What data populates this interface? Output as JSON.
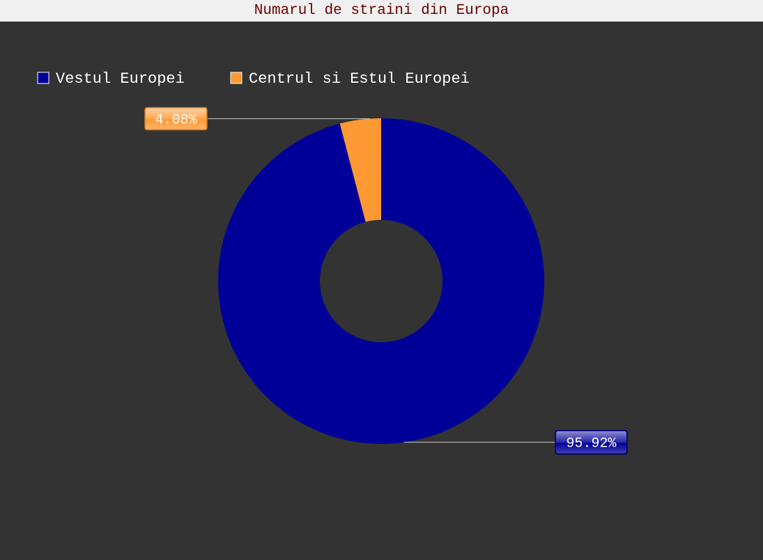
{
  "chart_data": {
    "type": "pie",
    "title": "Numarul de straini din Europa",
    "donut": true,
    "legend_position": "top-left",
    "slices": [
      {
        "name": "Vestul Europei",
        "value": 95.92,
        "label": "95.92%",
        "color": "#000099"
      },
      {
        "name": "Centrul si Estul Europei",
        "value": 4.08,
        "label": "4.08%",
        "color": "#ff9933"
      }
    ]
  },
  "colors": {
    "background": "#333333",
    "title_bar": "#f0f0f0",
    "title_text": "#6b0000"
  }
}
